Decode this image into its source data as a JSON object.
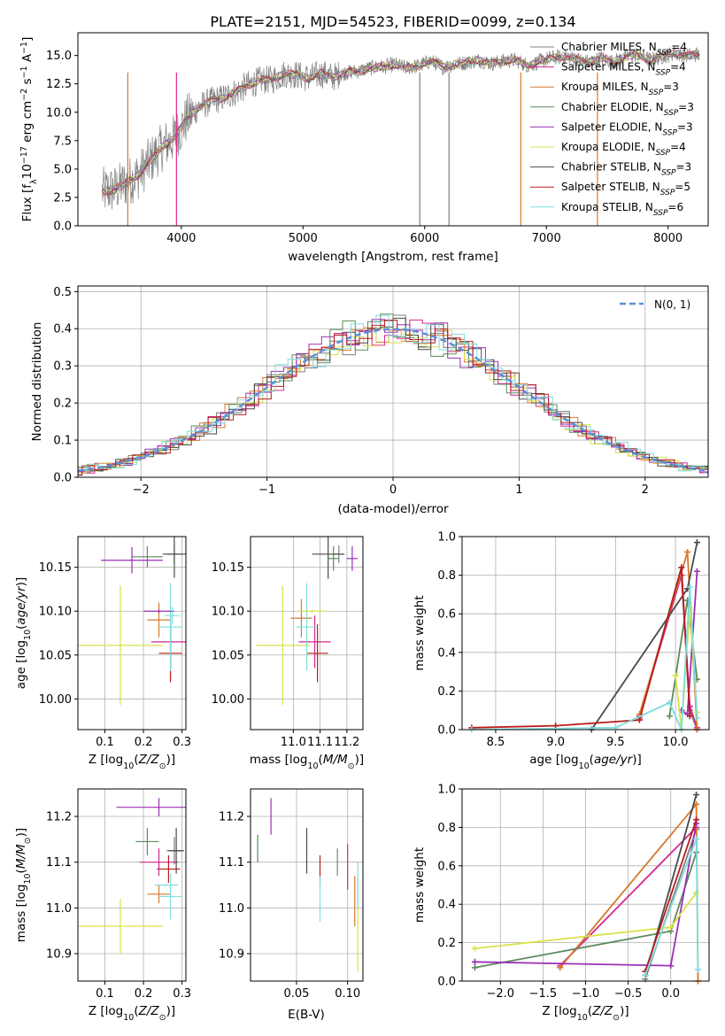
{
  "figure": {
    "title": "PLATE=2151, MJD=54523, FIBERID=0099, z=0.134"
  },
  "colors": {
    "Chabrier MILES": "#7f7f7f",
    "Salpeter MILES": "#d62790",
    "Kroupa MILES": "#d8782a",
    "Chabrier ELODIE": "#5c8a5c",
    "Salpeter ELODIE": "#9b30b5",
    "Kroupa ELODIE": "#d9e24c",
    "Chabrier STELIB": "#4a4a4a",
    "Salpeter STELIB": "#b81c1c",
    "Kroupa STELIB": "#7fdedf"
  },
  "legend": [
    {
      "label": "Chabrier MILES, N",
      "sub": "SSP",
      "tail": "=4",
      "key": "Chabrier MILES"
    },
    {
      "label": "Salpeter MILES, N",
      "sub": "SSP",
      "tail": "=4",
      "key": "Salpeter MILES"
    },
    {
      "label": "Kroupa MILES, N",
      "sub": "SSP",
      "tail": "=3",
      "key": "Kroupa MILES"
    },
    {
      "label": "Chabrier ELODIE, N",
      "sub": "SSP",
      "tail": "=3",
      "key": "Chabrier ELODIE"
    },
    {
      "label": "Salpeter ELODIE, N",
      "sub": "SSP",
      "tail": "=3",
      "key": "Salpeter ELODIE"
    },
    {
      "label": "Kroupa ELODIE, N",
      "sub": "SSP",
      "tail": "=4",
      "key": "Kroupa ELODIE"
    },
    {
      "label": "Chabrier STELIB, N",
      "sub": "SSP",
      "tail": "=3",
      "key": "Chabrier STELIB"
    },
    {
      "label": "Salpeter STELIB, N",
      "sub": "SSP",
      "tail": "=5",
      "key": "Salpeter STELIB"
    },
    {
      "label": "Kroupa STELIB, N",
      "sub": "SSP",
      "tail": "=6",
      "key": "Kroupa STELIB"
    }
  ],
  "chart_data": [
    {
      "id": "spectrum",
      "type": "line",
      "title": "PLATE=2151, MJD=54523, FIBERID=0099, z=0.134",
      "xlabel": "wavelength [Angstrom, rest frame]",
      "ylabel_parts": [
        "Flux [f",
        "λ",
        "10",
        "−17",
        " erg cm",
        "−2",
        " s",
        "−1",
        " A",
        "−1",
        "]"
      ],
      "xlim": [
        3150,
        8330
      ],
      "ylim": [
        0,
        17
      ],
      "xticks": [
        4000,
        5000,
        6000,
        7000,
        8000
      ],
      "yticks": [
        "0.0",
        "2.5",
        "5.0",
        "7.5",
        "10.0",
        "12.5",
        "15.0"
      ],
      "ytick_values": [
        0,
        2.5,
        5,
        7.5,
        10,
        12.5,
        15
      ],
      "observed_continuum": {
        "x": [
          3350,
          3450,
          3550,
          3650,
          3750,
          3850,
          3950,
          4050,
          4150,
          4250,
          4350,
          4450,
          4550,
          4650,
          4750,
          4850,
          4950,
          5050,
          5150,
          5250,
          5350,
          5450,
          5550,
          5650,
          5750,
          5850,
          5950,
          6050,
          6150,
          6250,
          6350,
          6450,
          6550,
          6650,
          6750,
          6850,
          6950,
          7050,
          7150,
          7250,
          7350,
          7450,
          7550,
          7650,
          7750,
          7850,
          7950,
          8050,
          8150,
          8250
        ],
        "y": [
          3.0,
          3.2,
          3.8,
          4.5,
          5.8,
          7.0,
          7.8,
          9.5,
          10.5,
          11.0,
          11.3,
          11.8,
          12.4,
          12.8,
          12.9,
          13.4,
          13.3,
          13.0,
          13.4,
          13.1,
          13.5,
          13.6,
          13.9,
          14.0,
          14.2,
          13.9,
          14.1,
          14.5,
          14.0,
          14.2,
          14.4,
          14.6,
          14.3,
          14.5,
          14.6,
          14.1,
          14.5,
          14.8,
          14.9,
          14.7,
          14.4,
          14.8,
          14.4,
          14.9,
          15.1,
          14.6,
          14.9,
          15.2,
          15.0,
          15.1
        ]
      },
      "spikes": [
        {
          "x": 3560,
          "key": "Kroupa MILES"
        },
        {
          "x": 3960,
          "key": "Salpeter MILES"
        },
        {
          "x": 5960,
          "key": "Chabrier MILES"
        },
        {
          "x": 6200,
          "key": "Chabrier MILES"
        },
        {
          "x": 6790,
          "key": "Kroupa MILES"
        },
        {
          "x": 7420,
          "key": "Kroupa MILES"
        }
      ]
    },
    {
      "id": "residuals",
      "type": "histogram",
      "xlabel": "(data-model)/error",
      "ylabel": "Normed distribution",
      "xlim": [
        -2.5,
        2.5
      ],
      "ylim": [
        0,
        0.515
      ],
      "xticks": [
        "−2",
        "−1",
        "0",
        "1",
        "2"
      ],
      "xtick_values": [
        -2,
        -1,
        0,
        1,
        2
      ],
      "yticks": [
        "0.0",
        "0.1",
        "0.2",
        "0.3",
        "0.4",
        "0.5"
      ],
      "ytick_values": [
        0,
        0.1,
        0.2,
        0.3,
        0.4,
        0.5
      ],
      "bin_width": 0.1,
      "reference_curve": {
        "label": "N(0, 1)",
        "color": "#5b8fd9",
        "mu": 0,
        "sigma": 1
      }
    },
    {
      "id": "age_vs_Z",
      "type": "errorbar",
      "xlabel_parts": [
        "Z [log",
        "10",
        "(Z/Z",
        "⊙",
        ")]"
      ],
      "ylabel_parts": [
        "age  [log",
        "10",
        "(age/yr)]"
      ],
      "xlim": [
        0.03,
        0.31
      ],
      "ylim": [
        9.965,
        10.185
      ],
      "xticks": [
        "0.1",
        "0.2",
        "0.3"
      ],
      "xtick_values": [
        0.1,
        0.2,
        0.3
      ],
      "yticks": [
        "10.00",
        "10.05",
        "10.10",
        "10.15"
      ],
      "ytick_values": [
        10.0,
        10.05,
        10.1,
        10.15
      ],
      "points": [
        {
          "key": "Chabrier MILES",
          "x": 0.28,
          "y": 10.165,
          "xerr": 0.02,
          "yerr": 0.01
        },
        {
          "key": "Salpeter MILES",
          "x": 0.27,
          "y": 10.065,
          "xerr": 0.05,
          "yerr": 0.03
        },
        {
          "key": "Kroupa MILES",
          "x": 0.24,
          "y": 10.09,
          "xerr": 0.03,
          "yerr": 0.02
        },
        {
          "key": "Chabrier ELODIE",
          "x": 0.21,
          "y": 10.162,
          "xerr": 0.04,
          "yerr": 0.012
        },
        {
          "key": "Salpeter ELODIE",
          "x": 0.17,
          "y": 10.158,
          "xerr": 0.08,
          "yerr": 0.015
        },
        {
          "key": "Kroupa ELODIE",
          "x": 0.14,
          "y": 10.061,
          "xerr": 0.11,
          "yerr": 0.068
        },
        {
          "key": "Chabrier STELIB",
          "x": 0.28,
          "y": 10.165,
          "xerr": 0.03,
          "yerr": 0.027
        },
        {
          "key": "Salpeter STELIB",
          "x": 0.27,
          "y": 10.052,
          "xerr": 0.03,
          "yerr": 0.033
        },
        {
          "key": "Kroupa STELIB",
          "x": 0.27,
          "y": 10.082,
          "xerr": 0.03,
          "yerr": 0.05
        },
        {
          "key": "Salpeter ELODIE",
          "x": 0.24,
          "y": 10.1,
          "xerr": 0.04,
          "yerr": 0.002
        },
        {
          "key": "Kroupa STELIB",
          "x": 0.275,
          "y": 10.095,
          "xerr": 0.02,
          "yerr": 0.01
        }
      ]
    },
    {
      "id": "age_vs_mass",
      "type": "errorbar",
      "xlabel_parts": [
        "mass [log",
        "10",
        "(M/M",
        "⊙",
        ")]"
      ],
      "xlim": [
        10.84,
        11.26
      ],
      "ylim": [
        9.965,
        10.185
      ],
      "xticks": [
        "11.0",
        "11.1",
        "11.2"
      ],
      "xtick_values": [
        11.0,
        11.1,
        11.2
      ],
      "yticks": [
        "10.00",
        "10.05",
        "10.10",
        "10.15"
      ],
      "ytick_values": [
        10.0,
        10.05,
        10.1,
        10.15
      ],
      "points": [
        {
          "key": "Chabrier MILES",
          "x": 11.17,
          "y": 10.165,
          "xerr": 0.02,
          "yerr": 0.01
        },
        {
          "key": "Salpeter MILES",
          "x": 11.08,
          "y": 10.065,
          "xerr": 0.06,
          "yerr": 0.03
        },
        {
          "key": "Kroupa MILES",
          "x": 11.03,
          "y": 10.092,
          "xerr": 0.04,
          "yerr": 0.022
        },
        {
          "key": "Chabrier ELODIE",
          "x": 11.15,
          "y": 10.16,
          "xerr": 0.02,
          "yerr": 0.014
        },
        {
          "key": "Salpeter ELODIE",
          "x": 11.22,
          "y": 10.16,
          "xerr": 0.02,
          "yerr": 0.014
        },
        {
          "key": "Kroupa ELODIE",
          "x": 10.96,
          "y": 10.061,
          "xerr": 0.1,
          "yerr": 0.068
        },
        {
          "key": "Chabrier STELIB",
          "x": 11.13,
          "y": 10.165,
          "xerr": 0.06,
          "yerr": 0.028
        },
        {
          "key": "Salpeter STELIB",
          "x": 11.09,
          "y": 10.052,
          "xerr": 0.04,
          "yerr": 0.033
        },
        {
          "key": "Kroupa STELIB",
          "x": 11.05,
          "y": 10.082,
          "xerr": 0.04,
          "yerr": 0.05
        },
        {
          "key": "Kroupa ELODIE",
          "x": 11.07,
          "y": 10.1,
          "xerr": 0.05,
          "yerr": 0.002
        }
      ]
    },
    {
      "id": "mass_weight_vs_age",
      "type": "line",
      "xlabel_parts": [
        "age  [log",
        "10",
        "(age/yr)]"
      ],
      "ylabel": "mass weight",
      "xlim": [
        8.22,
        10.28
      ],
      "ylim": [
        0,
        1.0
      ],
      "xticks": [
        "8.5",
        "9.0",
        "9.5",
        "10.0"
      ],
      "xtick_values": [
        8.5,
        9.0,
        9.5,
        10.0
      ],
      "yticks": [
        "0.0",
        "0.2",
        "0.4",
        "0.6",
        "0.8",
        "1.0"
      ],
      "ytick_values": [
        0,
        0.2,
        0.4,
        0.6,
        0.8,
        1.0
      ],
      "series": [
        {
          "key": "Chabrier MILES",
          "x": [
            9.7,
            10.05,
            10.12,
            10.18
          ],
          "y": [
            0.06,
            0.84,
            0.1,
            0.0
          ]
        },
        {
          "key": "Salpeter MILES",
          "x": [
            9.7,
            10.05,
            10.12,
            10.18
          ],
          "y": [
            0.07,
            0.8,
            0.12,
            0.01
          ]
        },
        {
          "key": "Kroupa MILES",
          "x": [
            9.7,
            10.1,
            10.18
          ],
          "y": [
            0.08,
            0.92,
            0.0
          ]
        },
        {
          "key": "Chabrier ELODIE",
          "x": [
            9.95,
            10.1,
            10.18
          ],
          "y": [
            0.07,
            0.67,
            0.26
          ]
        },
        {
          "key": "Salpeter ELODIE",
          "x": [
            10.05,
            10.1,
            10.18
          ],
          "y": [
            0.1,
            0.08,
            0.82
          ]
        },
        {
          "key": "Kroupa ELODIE",
          "x": [
            10.0,
            10.05,
            10.12,
            10.18
          ],
          "y": [
            0.28,
            0.0,
            0.63,
            0.09
          ]
        },
        {
          "key": "Chabrier STELIB",
          "x": [
            9.3,
            10.1,
            10.18
          ],
          "y": [
            0.0,
            0.73,
            0.97
          ]
        },
        {
          "key": "Salpeter STELIB",
          "x": [
            8.3,
            9.0,
            9.7,
            10.05,
            10.12
          ],
          "y": [
            0.01,
            0.02,
            0.05,
            0.84,
            0.07
          ]
        },
        {
          "key": "Kroupa STELIB",
          "x": [
            8.3,
            9.5,
            9.95,
            10.05,
            10.12,
            10.18
          ],
          "y": [
            0.0,
            0.01,
            0.14,
            0.0,
            0.74,
            0.06
          ]
        }
      ]
    },
    {
      "id": "mass_vs_Z",
      "type": "errorbar",
      "xlabel_parts": [
        "Z [log",
        "10",
        "(Z/Z",
        "⊙",
        ")]"
      ],
      "ylabel_parts": [
        "mass [log",
        "10",
        "(M/M",
        "⊙",
        ")]"
      ],
      "xlim": [
        0.03,
        0.31
      ],
      "ylim": [
        10.84,
        11.26
      ],
      "xticks": [
        "0.1",
        "0.2",
        "0.3"
      ],
      "xtick_values": [
        0.1,
        0.2,
        0.3
      ],
      "yticks": [
        "10.9",
        "11.0",
        "11.1",
        "11.2"
      ],
      "ytick_values": [
        10.9,
        11.0,
        11.1,
        11.2
      ],
      "points": [
        {
          "key": "Chabrier MILES",
          "x": 0.28,
          "y": 11.125,
          "xerr": 0.02,
          "yerr": 0.03
        },
        {
          "key": "Salpeter MILES",
          "x": 0.24,
          "y": 11.1,
          "xerr": 0.05,
          "yerr": 0.03
        },
        {
          "key": "Kroupa MILES",
          "x": 0.24,
          "y": 11.03,
          "xerr": 0.03,
          "yerr": 0.02
        },
        {
          "key": "Chabrier ELODIE",
          "x": 0.21,
          "y": 11.145,
          "xerr": 0.03,
          "yerr": 0.03
        },
        {
          "key": "Salpeter ELODIE",
          "x": 0.24,
          "y": 11.22,
          "xerr": 0.11,
          "yerr": 0.02
        },
        {
          "key": "Kroupa ELODIE",
          "x": 0.14,
          "y": 10.96,
          "xerr": 0.11,
          "yerr": 0.06
        },
        {
          "key": "Chabrier STELIB",
          "x": 0.285,
          "y": 11.125,
          "xerr": 0.02,
          "yerr": 0.05
        },
        {
          "key": "Salpeter STELIB",
          "x": 0.265,
          "y": 11.085,
          "xerr": 0.03,
          "yerr": 0.03
        },
        {
          "key": "Kroupa STELIB",
          "x": 0.27,
          "y": 11.025,
          "xerr": 0.03,
          "yerr": 0.05
        },
        {
          "key": "Kroupa STELIB",
          "x": 0.26,
          "y": 11.05,
          "xerr": 0.03,
          "yerr": 0.002
        }
      ]
    },
    {
      "id": "mass_vs_EBV",
      "type": "errorbar",
      "xlabel": "E(B-V)",
      "xlim": [
        0.005,
        0.115
      ],
      "ylim": [
        10.84,
        11.26
      ],
      "xticks": [
        "0.05",
        "0.10"
      ],
      "xtick_values": [
        0.05,
        0.1
      ],
      "yticks": [
        "10.9",
        "11.0",
        "11.1",
        "11.2"
      ],
      "ytick_values": [
        10.9,
        11.0,
        11.1,
        11.2
      ],
      "points": [
        {
          "key": "Chabrier MILES",
          "x": 0.09,
          "y": 11.1,
          "xerr": 0,
          "yerr": 0.03
        },
        {
          "key": "Salpeter MILES",
          "x": 0.1,
          "y": 11.09,
          "xerr": 0,
          "yerr": 0.05
        },
        {
          "key": "Kroupa MILES",
          "x": 0.107,
          "y": 11.015,
          "xerr": 0,
          "yerr": 0.055
        },
        {
          "key": "Chabrier ELODIE",
          "x": 0.012,
          "y": 11.13,
          "xerr": 0,
          "yerr": 0.03
        },
        {
          "key": "Salpeter ELODIE",
          "x": 0.025,
          "y": 11.2,
          "xerr": 0,
          "yerr": 0.04
        },
        {
          "key": "Kroupa ELODIE",
          "x": 0.11,
          "y": 10.96,
          "xerr": 0,
          "yerr": 0.1
        },
        {
          "key": "Chabrier STELIB",
          "x": 0.06,
          "y": 11.125,
          "xerr": 0,
          "yerr": 0.05
        },
        {
          "key": "Salpeter STELIB",
          "x": 0.073,
          "y": 11.085,
          "xerr": 0,
          "yerr": 0.03
        },
        {
          "key": "Kroupa STELIB",
          "x": 0.073,
          "y": 11.02,
          "xerr": 0,
          "yerr": 0.05
        },
        {
          "key": "Kroupa STELIB",
          "x": 0.11,
          "y": 11.05,
          "xerr": 0,
          "yerr": 0.05
        }
      ]
    },
    {
      "id": "mass_weight_vs_Z",
      "type": "line",
      "xlabel_parts": [
        "Z [log",
        "10",
        "(Z/Z",
        "⊙",
        ")]"
      ],
      "ylabel": "mass weight",
      "xlim": [
        -2.45,
        0.45
      ],
      "ylim": [
        0,
        1.0
      ],
      "xticks": [
        "−2.0",
        "−1.5",
        "−1.0",
        "−0.5",
        "0.0"
      ],
      "xtick_values": [
        -2.0,
        -1.5,
        -1.0,
        -0.5,
        0.0
      ],
      "yticks": [
        "0.0",
        "0.2",
        "0.4",
        "0.6",
        "0.8",
        "1.0"
      ],
      "ytick_values": [
        0,
        0.2,
        0.4,
        0.6,
        0.8,
        1.0
      ],
      "series": [
        {
          "key": "Chabrier MILES",
          "x": [
            -0.3,
            0.3
          ],
          "y": [
            0.01,
            0.79
          ]
        },
        {
          "key": "Salpeter MILES",
          "x": [
            -1.3,
            0.3
          ],
          "y": [
            0.08,
            0.8
          ]
        },
        {
          "key": "Kroupa MILES",
          "x": [
            -1.3,
            0.3,
            0.32
          ],
          "y": [
            0.07,
            0.92,
            0.0
          ]
        },
        {
          "key": "Chabrier ELODIE",
          "x": [
            -2.3,
            0.0,
            0.3
          ],
          "y": [
            0.07,
            0.26,
            0.67
          ]
        },
        {
          "key": "Salpeter ELODIE",
          "x": [
            -2.3,
            0.0,
            0.3
          ],
          "y": [
            0.1,
            0.08,
            0.82
          ]
        },
        {
          "key": "Kroupa ELODIE",
          "x": [
            -2.3,
            0.0,
            0.3
          ],
          "y": [
            0.17,
            0.28,
            0.46
          ]
        },
        {
          "key": "Chabrier STELIB",
          "x": [
            -0.3,
            0.3
          ],
          "y": [
            0.03,
            0.97
          ]
        },
        {
          "key": "Salpeter STELIB",
          "x": [
            -0.3,
            0.3
          ],
          "y": [
            0.05,
            0.84
          ]
        },
        {
          "key": "Kroupa STELIB",
          "x": [
            -0.3,
            0.3,
            0.32
          ],
          "y": [
            0.03,
            0.74,
            0.06
          ]
        }
      ]
    }
  ]
}
